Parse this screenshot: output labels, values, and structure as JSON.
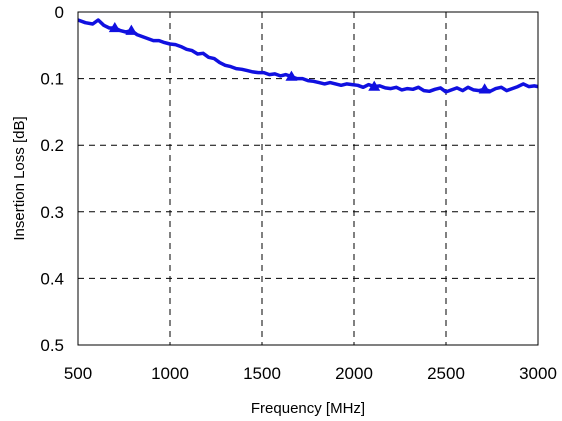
{
  "chart_data": {
    "type": "line",
    "title": "",
    "xlabel": "Frequency [MHz]",
    "ylabel": "Insertion Loss [dB]",
    "xlim": [
      500,
      3000
    ],
    "ylim": [
      0,
      0.5
    ],
    "y_inverted": true,
    "x_ticks": [
      500,
      1000,
      1500,
      2000,
      2500,
      3000
    ],
    "y_ticks": [
      0,
      0.1,
      0.2,
      0.3,
      0.4,
      0.5
    ],
    "x_tick_labels": [
      "500",
      "1000",
      "1500",
      "2000",
      "2500",
      "3000"
    ],
    "y_tick_labels": [
      "0",
      "0.1",
      "0.2",
      "0.3",
      "0.4",
      "0.5"
    ],
    "grid": true,
    "grid_style": "dashed",
    "legend": "none",
    "series": [
      {
        "color": "#1010e0",
        "marker": "triangle",
        "x": [
          500,
          540,
          580,
          610,
          640,
          670,
          700,
          730,
          760,
          790,
          820,
          850,
          880,
          910,
          940,
          970,
          1000,
          1030,
          1060,
          1090,
          1120,
          1150,
          1180,
          1210,
          1240,
          1270,
          1300,
          1330,
          1360,
          1390,
          1420,
          1450,
          1480,
          1510,
          1540,
          1570,
          1600,
          1630,
          1660,
          1690,
          1720,
          1750,
          1780,
          1810,
          1840,
          1870,
          1900,
          1930,
          1960,
          1990,
          2020,
          2050,
          2080,
          2110,
          2140,
          2170,
          2200,
          2230,
          2260,
          2290,
          2320,
          2350,
          2380,
          2410,
          2440,
          2470,
          2500,
          2530,
          2560,
          2590,
          2620,
          2650,
          2680,
          2710,
          2740,
          2770,
          2800,
          2830,
          2860,
          2890,
          2920,
          2950,
          2980,
          3000
        ],
        "y": [
          0.012,
          0.016,
          0.018,
          0.012,
          0.02,
          0.024,
          0.024,
          0.028,
          0.03,
          0.028,
          0.034,
          0.037,
          0.04,
          0.043,
          0.043,
          0.046,
          0.048,
          0.049,
          0.052,
          0.056,
          0.058,
          0.063,
          0.062,
          0.068,
          0.07,
          0.076,
          0.08,
          0.082,
          0.085,
          0.086,
          0.088,
          0.09,
          0.091,
          0.091,
          0.094,
          0.093,
          0.096,
          0.094,
          0.097,
          0.1,
          0.1,
          0.103,
          0.104,
          0.106,
          0.108,
          0.106,
          0.108,
          0.11,
          0.108,
          0.109,
          0.11,
          0.113,
          0.109,
          0.112,
          0.111,
          0.114,
          0.115,
          0.113,
          0.117,
          0.115,
          0.116,
          0.113,
          0.118,
          0.119,
          0.116,
          0.114,
          0.12,
          0.117,
          0.114,
          0.118,
          0.113,
          0.117,
          0.118,
          0.116,
          0.119,
          0.115,
          0.113,
          0.118,
          0.115,
          0.112,
          0.108,
          0.112,
          0.111,
          0.112
        ]
      }
    ]
  }
}
